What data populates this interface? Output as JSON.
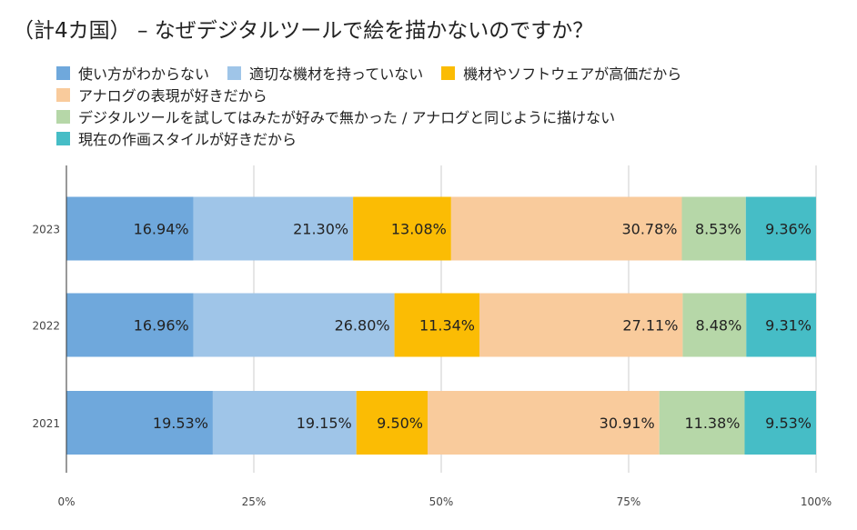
{
  "chart_data": {
    "type": "bar",
    "orientation": "horizontal",
    "stacked": true,
    "normalized": true,
    "title": "（計4カ国） – なぜデジタルツールで絵を描かないのですか？",
    "categories": [
      "2023",
      "2022",
      "2021"
    ],
    "series": [
      {
        "name": "使い方がわからない",
        "color": "#6fa8dc",
        "values": [
          16.94,
          16.96,
          19.53
        ],
        "labels": [
          "16.94%",
          "16.96%",
          "19.53%"
        ]
      },
      {
        "name": "適切な機材を持っていない",
        "color": "#9fc5e8",
        "values": [
          21.3,
          26.8,
          19.15
        ],
        "labels": [
          "21.30%",
          "26.80%",
          "19.15%"
        ]
      },
      {
        "name": "機材やソフトウェアが高価だから",
        "color": "#fbbc04",
        "values": [
          13.08,
          11.34,
          9.5
        ],
        "labels": [
          "13.08%",
          "11.34%",
          "9.50%"
        ]
      },
      {
        "name": "アナログの表現が好きだから",
        "color": "#f9cb9c",
        "values": [
          30.78,
          27.11,
          30.91
        ],
        "labels": [
          "30.78%",
          "27.11%",
          "30.91%"
        ]
      },
      {
        "name": "デジタルツールを試してはみたが好みで無かった / アナログと同じように描けない",
        "color": "#b6d7a8",
        "values": [
          8.53,
          8.48,
          11.38
        ],
        "labels": [
          "8.53%",
          "8.48%",
          "11.38%"
        ]
      },
      {
        "name": "現在の作画スタイルが好きだから",
        "color": "#46bdc6",
        "values": [
          9.36,
          9.31,
          9.53
        ],
        "labels": [
          "9.36%",
          "9.31%",
          "9.53%"
        ]
      }
    ],
    "xlim": [
      0,
      100
    ],
    "xticks": [
      "0%",
      "25%",
      "50%",
      "75%",
      "100%"
    ],
    "grid": true,
    "legend_position": "top",
    "gridline_color": "#cccccc"
  }
}
